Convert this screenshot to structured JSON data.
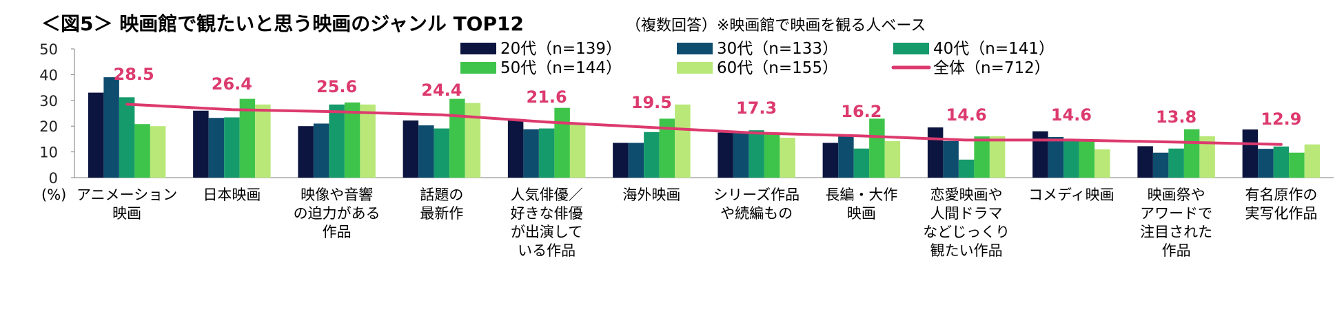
{
  "header": {
    "title": "＜図5＞ 映画館で観たいと思う映画のジャンル TOP12",
    "subtitle": "（複数回答）※映画館で映画を観る人ベース"
  },
  "chart_data": {
    "type": "bar",
    "unit_label": "(%)",
    "ylim": [
      0,
      50
    ],
    "yticks": [
      "0",
      "10",
      "20",
      "30",
      "40",
      "50"
    ],
    "grid": false,
    "legend_position": "top-right",
    "categories": [
      [
        "アニメーション",
        "映画"
      ],
      [
        "日本映画"
      ],
      [
        "映像や音響",
        "の迫力がある",
        "作品"
      ],
      [
        "話題の",
        "最新作"
      ],
      [
        "人気俳優／",
        "好きな俳優",
        "が出演して",
        "いる作品"
      ],
      [
        "海外映画"
      ],
      [
        "シリーズ作品",
        "や続編もの"
      ],
      [
        "長編・大作",
        "映画"
      ],
      [
        "恋愛映画や",
        "人間ドラマ",
        "などじっくり",
        "観たい作品"
      ],
      [
        "コメディ映画"
      ],
      [
        "映画祭や",
        "アワードで",
        "注目された",
        "作品"
      ],
      [
        "有名原作の",
        "実写化作品"
      ]
    ],
    "series": [
      {
        "name": "20代（n=139）",
        "color": "#0c1540",
        "values": [
          33.0,
          26.0,
          20.0,
          22.2,
          22.3,
          13.5,
          17.5,
          13.5,
          19.5,
          18.0,
          12.2,
          18.7
        ]
      },
      {
        "name": "30代（n=133）",
        "color": "#0f4d6e",
        "values": [
          39.0,
          23.2,
          21.0,
          20.3,
          18.8,
          13.5,
          17.3,
          16.0,
          14.2,
          15.8,
          9.7,
          11.2
        ]
      },
      {
        "name": "40代（n=141）",
        "color": "#159a6b",
        "values": [
          31.2,
          23.4,
          28.4,
          19.1,
          19.1,
          17.7,
          18.4,
          11.3,
          7.0,
          14.2,
          11.3,
          12.1
        ]
      },
      {
        "name": "50代（n=144）",
        "color": "#3ec44a",
        "values": [
          20.8,
          30.6,
          29.2,
          30.6,
          27.1,
          22.9,
          17.4,
          22.9,
          16.0,
          14.6,
          18.8,
          9.7
        ]
      },
      {
        "name": "60代（n=155）",
        "color": "#b9e879",
        "values": [
          20.0,
          28.4,
          28.4,
          29.0,
          20.6,
          28.4,
          15.5,
          14.2,
          16.1,
          11.0,
          16.1,
          12.9
        ]
      }
    ],
    "overall": {
      "name": "全体（n=712）",
      "color": "#dc3a6e",
      "values": [
        28.5,
        26.4,
        25.6,
        24.4,
        21.6,
        19.5,
        17.3,
        16.2,
        14.6,
        14.6,
        13.8,
        12.9
      ],
      "labels": [
        "28.5",
        "26.4",
        "25.6",
        "24.4",
        "21.6",
        "19.5",
        "17.3",
        "16.2",
        "14.6",
        "14.6",
        "13.8",
        "12.9"
      ]
    }
  }
}
